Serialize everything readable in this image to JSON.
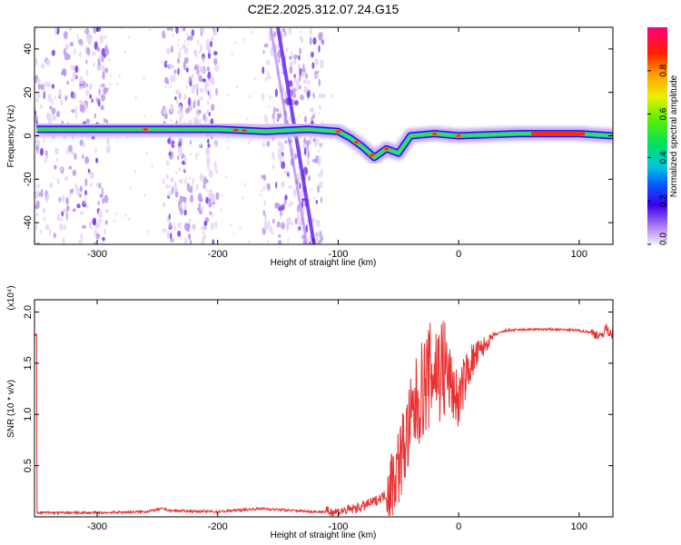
{
  "title": "C2E2.2025.312.07.24.G15",
  "chart_data": [
    {
      "type": "heatmap",
      "xlabel": "Height of straight line (km)",
      "ylabel": "Frequency (Hz)",
      "xlim": [
        -352,
        128
      ],
      "ylim": [
        -50,
        50
      ],
      "xticks": [
        -300,
        -200,
        -100,
        0,
        100
      ],
      "yticks": [
        -40,
        -20,
        0,
        20,
        40
      ],
      "colorbar": {
        "label": "Normalized spectral amplitude",
        "range": [
          0,
          1
        ],
        "ticks": [
          "0.0",
          "0.2",
          "0.4",
          "0.6",
          "0.8"
        ]
      },
      "ridge": [
        {
          "x": -350,
          "y": 3
        },
        {
          "x": -300,
          "y": 3
        },
        {
          "x": -250,
          "y": 3
        },
        {
          "x": -200,
          "y": 3
        },
        {
          "x": -160,
          "y": 2
        },
        {
          "x": -125,
          "y": 3
        },
        {
          "x": -100,
          "y": 2
        },
        {
          "x": -90,
          "y": -1
        },
        {
          "x": -80,
          "y": -5
        },
        {
          "x": -70,
          "y": -10
        },
        {
          "x": -60,
          "y": -6
        },
        {
          "x": -50,
          "y": -8
        },
        {
          "x": -40,
          "y": 0
        },
        {
          "x": -20,
          "y": 1
        },
        {
          "x": 0,
          "y": 0
        },
        {
          "x": 50,
          "y": 1
        },
        {
          "x": 100,
          "y": 1
        },
        {
          "x": 128,
          "y": 0
        }
      ],
      "noise_bands": [
        [
          -352,
          -290
        ],
        [
          -245,
          -200
        ],
        [
          -163,
          -112
        ]
      ],
      "streak": [
        [
          -150,
          50
        ],
        [
          -120,
          -50
        ]
      ]
    },
    {
      "type": "line",
      "xlabel": "Height of straight line (km)",
      "ylabel": "SNR (10 * v/v)",
      "yscale_label": "(x10⁴)",
      "xlim": [
        -352,
        128
      ],
      "ylim": [
        0,
        2.12
      ],
      "xticks": [
        -300,
        -200,
        -100,
        0,
        100
      ],
      "yticks": [
        "0.5",
        "1.0",
        "1.5",
        "2.0"
      ],
      "color": "#e83232",
      "series": [
        {
          "x": [
            -350,
            -300,
            -260,
            -245,
            -240,
            -200,
            -165,
            -150,
            -120,
            -100,
            -90,
            -80,
            -70,
            -60,
            -55,
            -50,
            -45,
            -40,
            -35,
            -30,
            -25,
            -20,
            -15,
            -10,
            -5,
            0,
            5,
            10,
            20,
            30,
            40,
            60,
            80,
            100,
            110,
            115,
            118,
            122,
            125,
            128
          ],
          "y": [
            0.04,
            0.04,
            0.05,
            0.08,
            0.06,
            0.05,
            0.08,
            0.07,
            0.05,
            0.05,
            0.07,
            0.1,
            0.15,
            0.22,
            0.35,
            0.5,
            0.7,
            0.9,
            1.1,
            1.25,
            1.35,
            1.45,
            1.45,
            1.4,
            1.25,
            1.12,
            1.35,
            1.5,
            1.65,
            1.78,
            1.82,
            1.83,
            1.83,
            1.82,
            1.8,
            1.78,
            1.75,
            1.85,
            1.8,
            1.78
          ]
        }
      ]
    }
  ]
}
